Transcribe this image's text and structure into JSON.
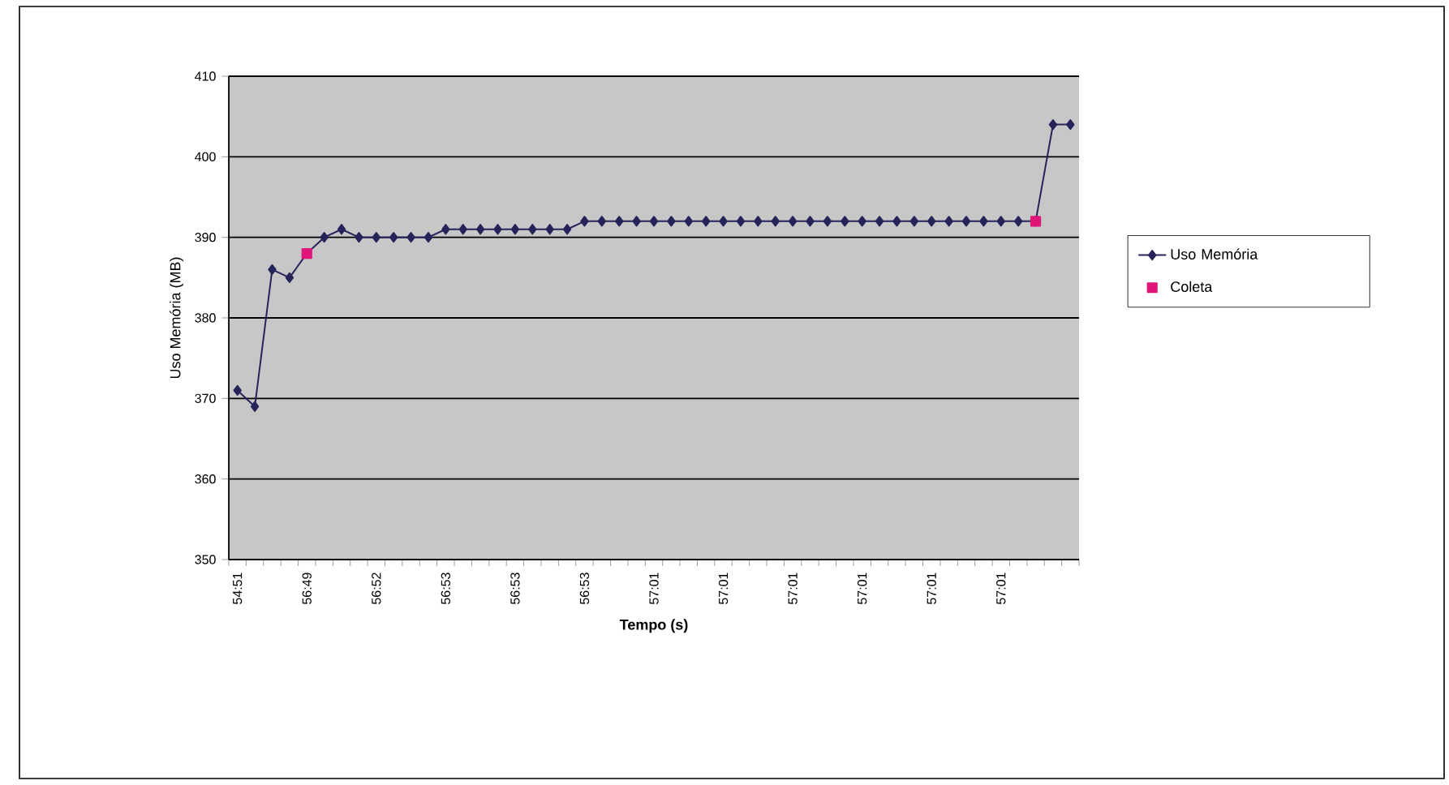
{
  "chart_data": {
    "type": "line",
    "xlabel": "Tempo (s)",
    "ylabel": "Uso Memória (MB)",
    "categories": [
      "54:51",
      null,
      null,
      null,
      "56:49",
      null,
      null,
      null,
      "56:52",
      null,
      null,
      null,
      "56:53",
      null,
      null,
      null,
      "56:53",
      null,
      null,
      null,
      "56:53",
      null,
      null,
      null,
      "57:01",
      null,
      null,
      null,
      "57:01",
      null,
      null,
      null,
      "57:01",
      null,
      null,
      null,
      "57:01",
      null,
      null,
      null,
      "57:01",
      null,
      null,
      null,
      "57:01",
      null,
      null,
      null,
      null
    ],
    "series": [
      {
        "name": "Uso Memória",
        "color": "#24245a",
        "marker": "diamond",
        "values": [
          371,
          369,
          386,
          385,
          388,
          390,
          391,
          390,
          390,
          390,
          390,
          390,
          391,
          391,
          391,
          391,
          391,
          391,
          391,
          391,
          392,
          392,
          392,
          392,
          392,
          392,
          392,
          392,
          392,
          392,
          392,
          392,
          392,
          392,
          392,
          392,
          392,
          392,
          392,
          392,
          392,
          392,
          392,
          392,
          392,
          392,
          392,
          404,
          404
        ]
      },
      {
        "name": "Coleta",
        "type": "scatter",
        "color": "#e0157a",
        "marker": "square",
        "values": [
          null,
          null,
          null,
          null,
          388,
          null,
          null,
          null,
          null,
          null,
          null,
          null,
          null,
          null,
          null,
          null,
          null,
          null,
          null,
          null,
          null,
          null,
          null,
          null,
          null,
          null,
          null,
          null,
          null,
          null,
          null,
          null,
          null,
          null,
          null,
          null,
          null,
          null,
          null,
          null,
          null,
          null,
          null,
          null,
          null,
          null,
          392,
          null,
          null
        ]
      }
    ],
    "ylim": [
      350,
      410
    ],
    "yticks": [
      350,
      360,
      370,
      380,
      390,
      400,
      410
    ],
    "grid": "y",
    "legend": "right",
    "line_style": "solid"
  }
}
